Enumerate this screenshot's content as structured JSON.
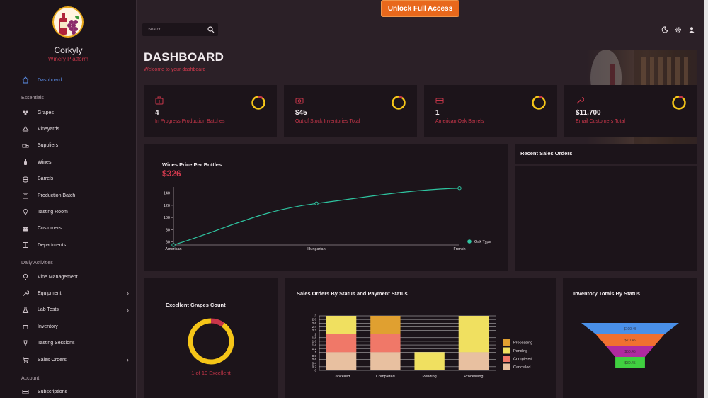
{
  "app": {
    "name": "Corkyly",
    "tagline": "Winery Platform"
  },
  "banner": {
    "unlock_label": "Unlock Full Access"
  },
  "search": {
    "placeholder": "Search"
  },
  "page": {
    "title": "DASHBOARD",
    "subtitle": "Welcome to your dashboard"
  },
  "sidebar": {
    "dashboard": "Dashboard",
    "sections": {
      "essentials": "Essentials",
      "daily": "Daily Activities",
      "account": "Account"
    },
    "essentials": [
      {
        "label": "Grapes",
        "icon": "grapes-icon"
      },
      {
        "label": "Vineyards",
        "icon": "vineyard-icon"
      },
      {
        "label": "Suppliers",
        "icon": "truck-icon"
      },
      {
        "label": "Wines",
        "icon": "bottle-icon"
      },
      {
        "label": "Barrels",
        "icon": "barrel-icon"
      },
      {
        "label": "Production Batch",
        "icon": "batch-icon"
      },
      {
        "label": "Tasting Room",
        "icon": "location-icon"
      },
      {
        "label": "Customers",
        "icon": "people-icon"
      },
      {
        "label": "Departments",
        "icon": "department-icon"
      }
    ],
    "daily": [
      {
        "label": "Vine Management",
        "icon": "bulb-icon",
        "expandable": false
      },
      {
        "label": "Equipment",
        "icon": "wrench-icon",
        "expandable": true
      },
      {
        "label": "Lab Tests",
        "icon": "flask-icon",
        "expandable": true
      },
      {
        "label": "Inventory",
        "icon": "archive-icon",
        "expandable": false
      },
      {
        "label": "Tasting Sessions",
        "icon": "wine-glass-icon",
        "expandable": false
      },
      {
        "label": "Sales Orders",
        "icon": "cart-icon",
        "expandable": true
      }
    ],
    "account": [
      {
        "label": "Subscriptions",
        "icon": "card-icon"
      }
    ]
  },
  "stats": [
    {
      "value": "4",
      "label": "In Progress Production Batches",
      "icon": "batch-icon",
      "ring_fraction": 0.12
    },
    {
      "value": "$45",
      "label": "Out of Stock Inventories Total",
      "icon": "money-icon",
      "ring_fraction": 0.1
    },
    {
      "value": "1",
      "label": "American Oak Barrels",
      "icon": "wallet-icon",
      "ring_fraction": 0.1
    },
    {
      "value": "$11,700",
      "label": "Email Customers Total",
      "icon": "wrench-icon",
      "ring_fraction": 0.1
    }
  ],
  "colors": {
    "accent_red": "#c8364a",
    "ring_yellow": "#f5c518",
    "line": "#2ec4a0",
    "unlock": "#e8681c"
  },
  "recent_orders": {
    "title": "Recent Sales Orders"
  },
  "line_chart": {
    "title": "Wines Price Per Bottles",
    "headline": "$326"
  },
  "grapes_chart": {
    "title": "Excellent Grapes Count",
    "caption": "1 of 10 Excellent"
  },
  "bar_chart": {
    "title": "Sales Orders By Status and Payment Status"
  },
  "funnel_chart": {
    "title": "Inventory Totals By Status"
  },
  "chart_data": [
    {
      "type": "line",
      "categories": [
        "American",
        "Hungarian",
        "French"
      ],
      "series": [
        {
          "name": "Oak Type",
          "values": [
            55,
            123,
            148
          ]
        }
      ],
      "yticks": [
        60,
        80,
        100,
        120,
        140
      ],
      "ylim": [
        55,
        150
      ],
      "legend": "right"
    },
    {
      "type": "pie",
      "subtype": "donut",
      "slices": [
        {
          "label": "Excellent",
          "value": 1
        },
        {
          "label": "Other",
          "value": 9
        }
      ]
    },
    {
      "type": "bar",
      "stacked": true,
      "categories": [
        "Cancelled",
        "Completed",
        "Pending",
        "Processing"
      ],
      "series": [
        {
          "name": "Processing",
          "values": [
            0,
            1,
            0,
            0
          ]
        },
        {
          "name": "Pending",
          "values": [
            1,
            0,
            1,
            2
          ]
        },
        {
          "name": "Completed",
          "values": [
            1,
            1,
            0,
            0
          ]
        },
        {
          "name": "Cancelled",
          "values": [
            1,
            1,
            0,
            1
          ]
        }
      ],
      "yticks": [
        "0",
        "0.2",
        "0.4",
        "0.6",
        "0.8",
        "1",
        "1.2",
        "1.4",
        "1.6",
        "1.8",
        "2",
        "2.2",
        "2.4",
        "2.6",
        "2.8",
        "3"
      ],
      "ylim": [
        0,
        3
      ],
      "legend": "right",
      "colors": {
        "Processing": "#e0a030",
        "Pending": "#f0e060",
        "Completed": "#f07868",
        "Cancelled": "#e8c0a0"
      }
    },
    {
      "type": "funnel",
      "stages": [
        {
          "label": "$100.45",
          "value": 100.45,
          "color": "#4a90e8"
        },
        {
          "label": "$70.45",
          "value": 70.45,
          "color": "#f07030"
        },
        {
          "label": "$50.45",
          "value": 50.45,
          "color": "#b02aa0"
        },
        {
          "label": "$30.45",
          "value": 30.45,
          "color": "#40d040"
        }
      ]
    }
  ]
}
